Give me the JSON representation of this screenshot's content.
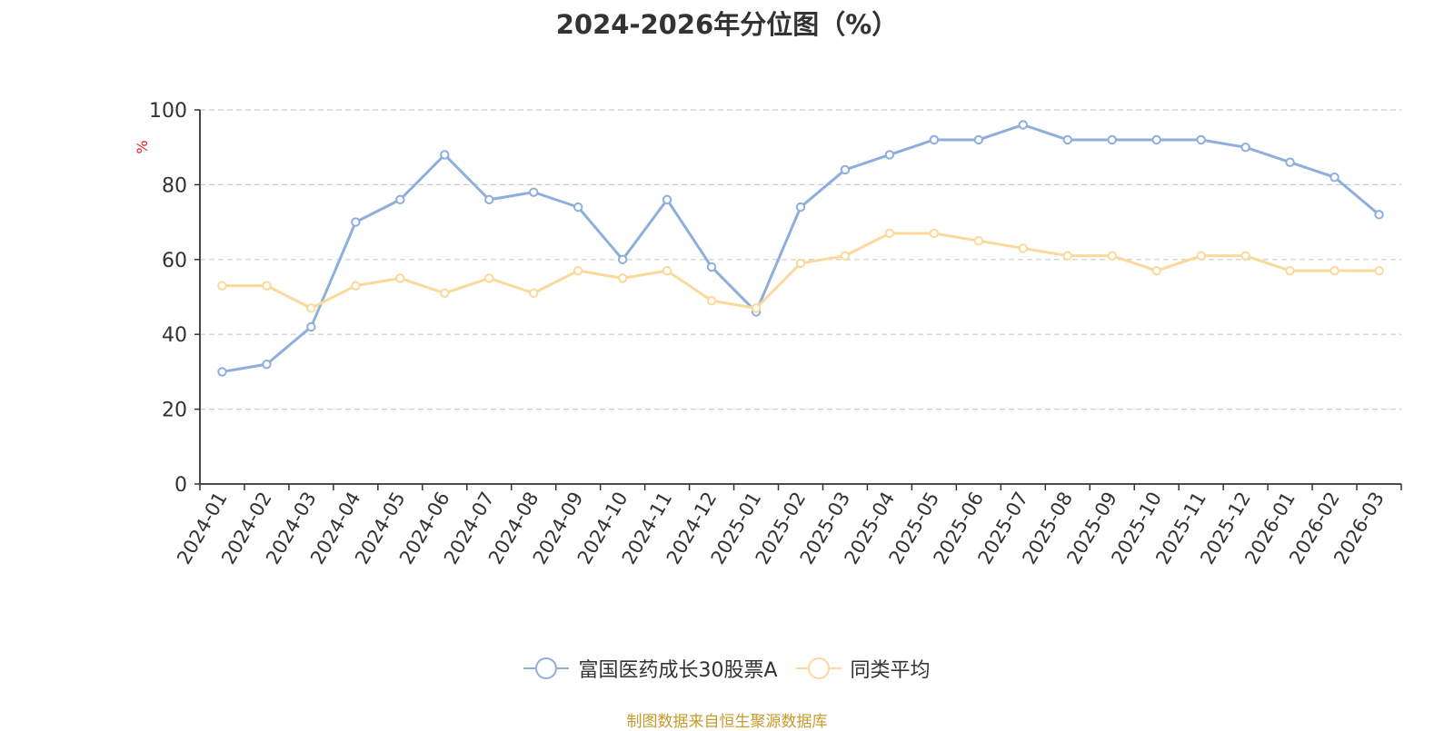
{
  "chart_data": {
    "type": "line",
    "title": "2024-2026年分位图（%）",
    "ylabel": "%",
    "ylim": [
      0,
      100
    ],
    "yticks": [
      0,
      20,
      40,
      60,
      80,
      100
    ],
    "grid": true,
    "legend_position": "bottom",
    "x": [
      "2024-01",
      "2024-02",
      "2024-03",
      "2024-04",
      "2024-05",
      "2024-06",
      "2024-07",
      "2024-08",
      "2024-09",
      "2024-10",
      "2024-11",
      "2024-12",
      "2025-01",
      "2025-02",
      "2025-03",
      "2025-04",
      "2025-05",
      "2025-06",
      "2025-07",
      "2025-08",
      "2025-09",
      "2025-10",
      "2025-11",
      "2025-12",
      "2026-01",
      "2026-02",
      "2026-03"
    ],
    "series": [
      {
        "name": "富国医药成长30股票A",
        "color": "#8eaedb",
        "values": [
          30,
          32,
          42,
          70,
          76,
          88,
          76,
          78,
          74,
          60,
          76,
          58,
          46,
          74,
          84,
          88,
          92,
          92,
          96,
          92,
          92,
          92,
          92,
          90,
          86,
          82,
          72
        ]
      },
      {
        "name": "同类平均",
        "color": "#fbd99a",
        "values": [
          53,
          53,
          47,
          53,
          55,
          51,
          55,
          51,
          57,
          55,
          57,
          49,
          47,
          59,
          61,
          67,
          67,
          65,
          63,
          61,
          61,
          57,
          61,
          61,
          57,
          57,
          57
        ]
      }
    ]
  },
  "source_note": "制图数据来自恒生聚源数据库",
  "colors": {
    "axis": "#333333",
    "grid": "#cccccc",
    "ylabel": "#e02020",
    "source": "#c79a2c"
  }
}
